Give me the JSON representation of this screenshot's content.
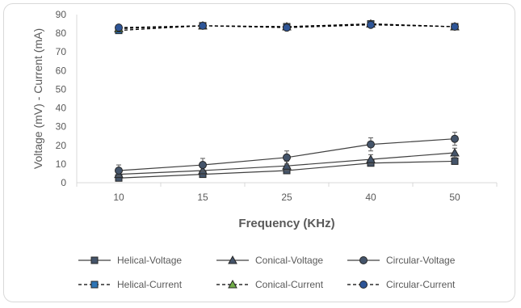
{
  "chart_data": {
    "type": "line",
    "xlabel": "Frequency (KHz)",
    "ylabel": "Voltage (mV)  - Current (mA)",
    "categories": [
      "10",
      "15",
      "25",
      "40",
      "50"
    ],
    "ylim": [
      0,
      90
    ],
    "yticks": [
      0,
      10,
      20,
      30,
      40,
      50,
      60,
      70,
      80,
      90
    ],
    "grid": false,
    "legend_position": "bottom",
    "series": [
      {
        "name": "Helical-Voltage",
        "values": [
          2.5,
          4.5,
          6.5,
          10.5,
          11.5
        ],
        "errors": [
          1.0,
          1.0,
          1.5,
          1.5,
          1.5
        ],
        "marker": "square",
        "dash": "solid",
        "color": "#404040",
        "fill": "#44546a"
      },
      {
        "name": "Conical-Voltage",
        "values": [
          4.5,
          6.5,
          9.0,
          12.5,
          16.0
        ],
        "errors": [
          1.5,
          2.0,
          2.5,
          2.5,
          2.5
        ],
        "marker": "triangle",
        "dash": "solid",
        "color": "#404040",
        "fill": "#44546a"
      },
      {
        "name": "Circular-Voltage",
        "values": [
          6.5,
          9.5,
          13.5,
          20.5,
          23.5
        ],
        "errors": [
          3.0,
          3.5,
          3.5,
          3.5,
          3.5
        ],
        "marker": "circle",
        "dash": "solid",
        "color": "#404040",
        "fill": "#44546a"
      },
      {
        "name": "Helical-Current",
        "values": [
          81.5,
          84.0,
          83.5,
          85.0,
          83.5
        ],
        "errors": [
          0,
          0,
          0,
          0,
          0
        ],
        "marker": "square",
        "dash": "dashed",
        "color": "#000000",
        "fill": "#2e75b6"
      },
      {
        "name": "Conical-Current",
        "values": [
          82.5,
          84.0,
          83.5,
          85.0,
          83.5
        ],
        "errors": [
          0,
          0,
          0,
          0,
          0
        ],
        "marker": "triangle",
        "dash": "dashed",
        "color": "#000000",
        "fill": "#70ad47"
      },
      {
        "name": "Circular-Current",
        "values": [
          83.0,
          84.0,
          83.0,
          84.5,
          83.5
        ],
        "errors": [
          0,
          0,
          0,
          0,
          0
        ],
        "marker": "circle",
        "dash": "dashed",
        "color": "#000000",
        "fill": "#2e5597"
      }
    ]
  }
}
